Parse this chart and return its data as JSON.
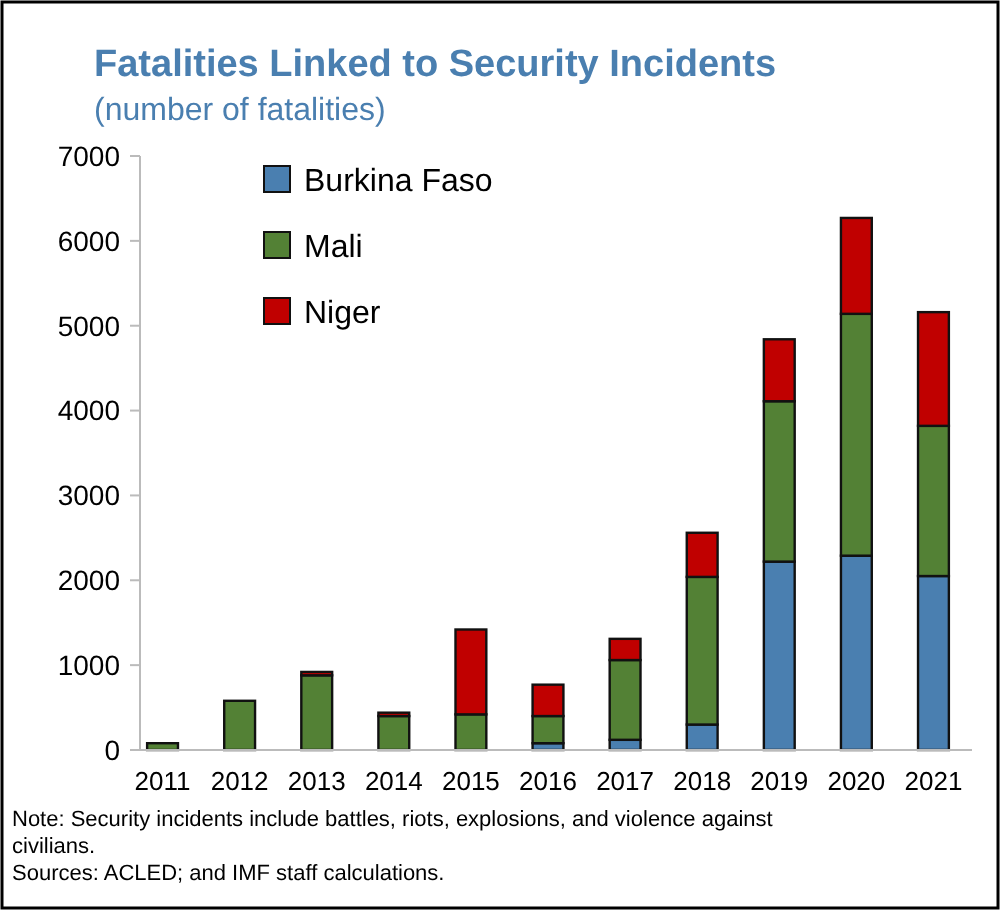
{
  "chart_data": {
    "type": "bar",
    "stacked": true,
    "title": "Fatalities Linked to Security Incidents",
    "subtitle": "(number of fatalities)",
    "categories": [
      "2011",
      "2012",
      "2013",
      "2014",
      "2015",
      "2016",
      "2017",
      "2018",
      "2019",
      "2020",
      "2021"
    ],
    "series": [
      {
        "name": "Burkina Faso",
        "color": "#4a7fb0",
        "values": [
          0,
          null,
          0,
          null,
          null,
          80,
          120,
          300,
          2220,
          2290,
          2050
        ]
      },
      {
        "name": "Mali",
        "color": "#538135",
        "values": [
          80,
          580,
          880,
          400,
          420,
          320,
          940,
          1740,
          1890,
          2850,
          1770
        ]
      },
      {
        "name": "Niger",
        "color": "#c00000",
        "values": [
          null,
          null,
          40,
          40,
          1000,
          370,
          250,
          520,
          730,
          1130,
          1340
        ]
      }
    ],
    "ylim": [
      0,
      7000
    ],
    "yticks": [
      0,
      1000,
      2000,
      3000,
      4000,
      5000,
      6000,
      7000
    ],
    "grid": false,
    "legend": "top left",
    "annotations": [
      "Note: Security incidents include battles, riots, explosions, and violence against civilians.",
      "Sources: ACLED; and IMF staff calculations."
    ]
  }
}
